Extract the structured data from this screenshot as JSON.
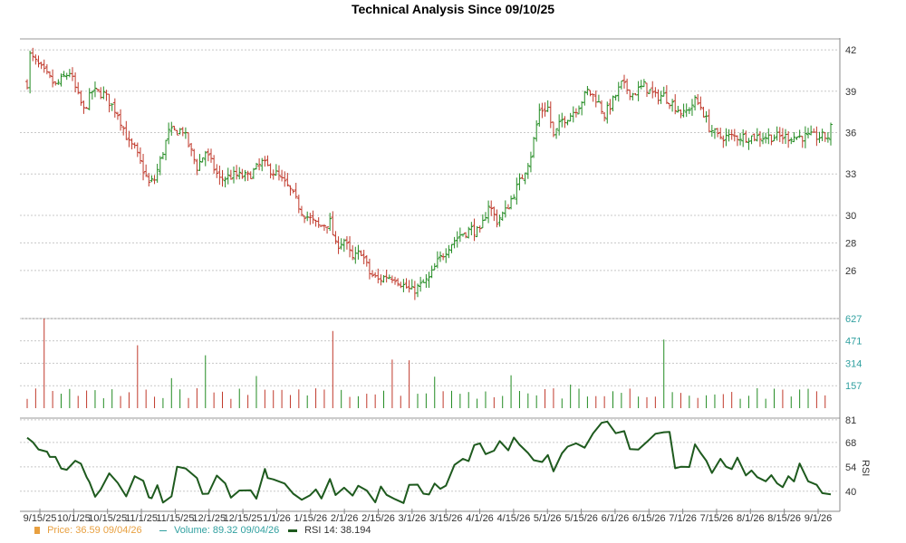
{
  "title": "Technical Analysis Since 09/10/25",
  "colors": {
    "up": "#228b22",
    "down": "#c0392b",
    "rsi_line": "#1e5a1e",
    "grid": "#c8c8c8",
    "price_legend": "#e8a040",
    "volume_legend": "#30a0a0",
    "volume_axis": "#30a0a0"
  },
  "legend": {
    "price_label": "Price: 36.59  09/04/26",
    "volume_label": "Volume: 89.32  09/04/26",
    "rsi_label": "RSI 14: 38.194"
  },
  "chart_data": [
    {
      "type": "ohlc",
      "panel": "price",
      "y_ticks": [
        26,
        28,
        30,
        33,
        36,
        39,
        42
      ],
      "ylim": [
        23.5,
        42.4
      ],
      "x_ticks": [
        "9/15/25",
        "10/1/25",
        "10/15/25",
        "11/1/25",
        "11/15/25",
        "12/1/25",
        "12/15/25",
        "1/1/26",
        "1/15/26",
        "2/1/26",
        "2/15/26",
        "3/1/26",
        "3/15/26",
        "4/1/26",
        "4/15/26",
        "5/1/26",
        "5/15/26",
        "6/1/26",
        "6/15/26",
        "7/1/26",
        "7/15/26",
        "8/1/26",
        "8/15/26",
        "9/1/26"
      ],
      "anchors": [
        [
          0,
          39.6
        ],
        [
          1,
          41.6
        ],
        [
          5,
          40.6
        ],
        [
          10,
          39.4
        ],
        [
          15,
          40.4
        ],
        [
          18,
          38.6
        ],
        [
          20,
          37.6
        ],
        [
          23,
          39.0
        ],
        [
          27,
          38.8
        ],
        [
          32,
          37.4
        ],
        [
          36,
          35.2
        ],
        [
          38,
          34.8
        ],
        [
          43,
          32.3
        ],
        [
          45,
          32.6
        ],
        [
          50,
          36.0
        ],
        [
          55,
          36.2
        ],
        [
          60,
          33.5
        ],
        [
          63,
          34.6
        ],
        [
          68,
          32.6
        ],
        [
          73,
          32.9
        ],
        [
          78,
          32.8
        ],
        [
          83,
          33.8
        ],
        [
          88,
          33.0
        ],
        [
          93,
          31.8
        ],
        [
          97,
          30.3
        ],
        [
          100,
          29.7
        ],
        [
          103,
          29.2
        ],
        [
          107,
          29.5
        ],
        [
          109,
          27.8
        ],
        [
          112,
          28.2
        ],
        [
          115,
          26.8
        ],
        [
          118,
          27.4
        ],
        [
          121,
          25.8
        ],
        [
          124,
          25.3
        ],
        [
          127,
          25.6
        ],
        [
          130,
          25.5
        ],
        [
          133,
          24.9
        ],
        [
          136,
          24.5
        ],
        [
          139,
          24.9
        ],
        [
          142,
          25.4
        ],
        [
          145,
          26.6
        ],
        [
          149,
          27.8
        ],
        [
          153,
          28.6
        ],
        [
          157,
          29.0
        ],
        [
          160,
          28.7
        ],
        [
          163,
          30.8
        ],
        [
          166,
          29.6
        ],
        [
          169,
          30.3
        ],
        [
          172,
          31.6
        ],
        [
          175,
          32.8
        ],
        [
          178,
          34.4
        ],
        [
          181,
          37.6
        ],
        [
          184,
          37.8
        ],
        [
          186,
          35.7
        ],
        [
          189,
          36.9
        ],
        [
          192,
          37.3
        ],
        [
          195,
          38.0
        ],
        [
          198,
          39.0
        ],
        [
          201,
          38.5
        ],
        [
          204,
          37.3
        ],
        [
          207,
          38.3
        ],
        [
          210,
          39.5
        ],
        [
          214,
          38.8
        ],
        [
          218,
          39.4
        ],
        [
          222,
          38.6
        ],
        [
          225,
          38.7
        ],
        [
          229,
          37.9
        ],
        [
          232,
          37.3
        ],
        [
          236,
          38.3
        ],
        [
          238,
          37.9
        ],
        [
          241,
          36.4
        ],
        [
          244,
          35.7
        ]
      ],
      "last_close": 36.59
    },
    {
      "type": "bar",
      "panel": "volume",
      "y_ticks": [
        157,
        314,
        471,
        627
      ],
      "ylim": [
        0,
        627
      ],
      "spikes": [
        [
          6,
          627
        ],
        [
          39,
          440
        ],
        [
          50,
          210
        ],
        [
          63,
          370
        ],
        [
          81,
          225
        ],
        [
          107,
          545
        ],
        [
          108,
          540
        ],
        [
          109,
          370
        ],
        [
          136,
          335
        ],
        [
          129,
          340
        ],
        [
          144,
          220
        ],
        [
          170,
          230
        ],
        [
          193,
          165
        ],
        [
          224,
          480
        ]
      ],
      "last_value": 89.32
    },
    {
      "type": "line",
      "panel": "rsi",
      "ylabel": "RSI",
      "y_ticks": [
        40,
        54,
        68,
        81
      ],
      "ylim": [
        30,
        82
      ],
      "anchors": [
        [
          0,
          70.7
        ],
        [
          2,
          68.2
        ],
        [
          4,
          64.0
        ],
        [
          7,
          62.7
        ],
        [
          8,
          59.7
        ],
        [
          10,
          59.7
        ],
        [
          12,
          53.1
        ],
        [
          14,
          52.3
        ],
        [
          17,
          57.5
        ],
        [
          19,
          55.8
        ],
        [
          21,
          48.1
        ],
        [
          22,
          45.3
        ],
        [
          24,
          36.8
        ],
        [
          26,
          41.0
        ],
        [
          29,
          50.3
        ],
        [
          32,
          44.8
        ],
        [
          35,
          37.0
        ],
        [
          38,
          48.6
        ],
        [
          41,
          46.0
        ],
        [
          43,
          36.5
        ],
        [
          44,
          36.0
        ],
        [
          46,
          43.4
        ],
        [
          48,
          33.5
        ],
        [
          51,
          37.0
        ],
        [
          53,
          54.1
        ],
        [
          56,
          53.1
        ],
        [
          60,
          47.5
        ],
        [
          62,
          38.4
        ],
        [
          64,
          38.6
        ],
        [
          67,
          49.0
        ],
        [
          70,
          44.5
        ],
        [
          72,
          36.3
        ],
        [
          75,
          40.4
        ],
        [
          79,
          40.5
        ],
        [
          81,
          35.7
        ],
        [
          84,
          52.8
        ],
        [
          85,
          47.6
        ],
        [
          87,
          46.8
        ],
        [
          91,
          44.4
        ],
        [
          94,
          38.6
        ],
        [
          97,
          35.1
        ],
        [
          100,
          37.7
        ],
        [
          102,
          41.0
        ],
        [
          104,
          35.8
        ],
        [
          107,
          47.0
        ],
        [
          109,
          37.8
        ],
        [
          112,
          42.0
        ],
        [
          115,
          37.5
        ],
        [
          117,
          43.1
        ],
        [
          120,
          40.4
        ],
        [
          123,
          33.6
        ],
        [
          125,
          42.7
        ],
        [
          127,
          37.9
        ],
        [
          130,
          35.4
        ],
        [
          133,
          33.2
        ],
        [
          135,
          43.6
        ],
        [
          138,
          43.8
        ],
        [
          140,
          38.6
        ],
        [
          142,
          38.1
        ],
        [
          144,
          44.4
        ],
        [
          146,
          41.4
        ],
        [
          148,
          43.2
        ],
        [
          151,
          55.1
        ],
        [
          154,
          58.6
        ],
        [
          156,
          57.3
        ],
        [
          158,
          66.5
        ],
        [
          160,
          67.5
        ],
        [
          162,
          61.3
        ],
        [
          165,
          63.3
        ],
        [
          167,
          68.8
        ],
        [
          170,
          63.5
        ],
        [
          172,
          70.8
        ],
        [
          174,
          66.7
        ],
        [
          177,
          62.0
        ],
        [
          179,
          57.8
        ],
        [
          182,
          56.8
        ],
        [
          184,
          60.8
        ],
        [
          186,
          51.4
        ],
        [
          189,
          61.8
        ],
        [
          191,
          65.6
        ],
        [
          194,
          67.5
        ],
        [
          197,
          65.0
        ],
        [
          200,
          73.2
        ],
        [
          203,
          79.3
        ],
        [
          205,
          80.0
        ],
        [
          208,
          73.3
        ],
        [
          211,
          74.5
        ],
        [
          213,
          64.2
        ],
        [
          216,
          63.9
        ],
        [
          219,
          68.3
        ],
        [
          222,
          73.0
        ],
        [
          225,
          73.9
        ],
        [
          227,
          74.1
        ],
        [
          229,
          53.2
        ],
        [
          231,
          54.0
        ],
        [
          234,
          53.9
        ],
        [
          236,
          66.9
        ],
        [
          238,
          62.0
        ],
        [
          240,
          57.5
        ],
        [
          242,
          50.5
        ],
        [
          245,
          58.6
        ],
        [
          247,
          54.1
        ],
        [
          249,
          52.7
        ],
        [
          251,
          59.3
        ],
        [
          254,
          49.1
        ],
        [
          256,
          51.9
        ],
        [
          258,
          48.1
        ],
        [
          261,
          45.7
        ],
        [
          263,
          49.2
        ],
        [
          265,
          44.5
        ],
        [
          267,
          42.3
        ],
        [
          269,
          48.6
        ],
        [
          271,
          45.6
        ],
        [
          273,
          55.9
        ],
        [
          276,
          45.7
        ],
        [
          279,
          43.7
        ],
        [
          281,
          38.9
        ],
        [
          284,
          38.2
        ]
      ],
      "last_value": 38.194
    }
  ]
}
